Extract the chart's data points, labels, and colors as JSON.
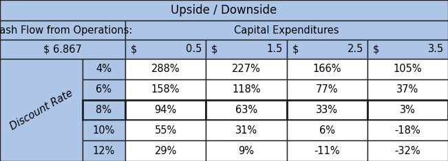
{
  "title": "Upside / Downside",
  "cashflow_label": "Cash Flow from Operations:",
  "cashflow_value": "$ 6.867",
  "capex_label": "Capital Expenditures",
  "capex_cols": [
    [
      "$",
      "0.5"
    ],
    [
      "$",
      "1.5"
    ],
    [
      "$",
      "2.5"
    ],
    [
      "$",
      "3.5"
    ]
  ],
  "discount_label": "Discount Rate",
  "discount_rates": [
    "4%",
    "6%",
    "8%",
    "10%",
    "12%"
  ],
  "table_data": [
    [
      "288%",
      "227%",
      "166%",
      "105%"
    ],
    [
      "158%",
      "118%",
      "77%",
      "37%"
    ],
    [
      "94%",
      "63%",
      "33%",
      "3%"
    ],
    [
      "55%",
      "31%",
      "6%",
      "-18%"
    ],
    [
      "29%",
      "9%",
      "-11%",
      "-32%"
    ]
  ],
  "bg_color": "#adc6e8",
  "white_color": "#ffffff",
  "border_color": "#1f1f1f",
  "title_fontsize": 12,
  "header_fontsize": 10.5,
  "cell_fontsize": 10.5,
  "bold_border_row": 2,
  "fig_w": 6.51,
  "fig_h": 2.35,
  "dpi": 100
}
